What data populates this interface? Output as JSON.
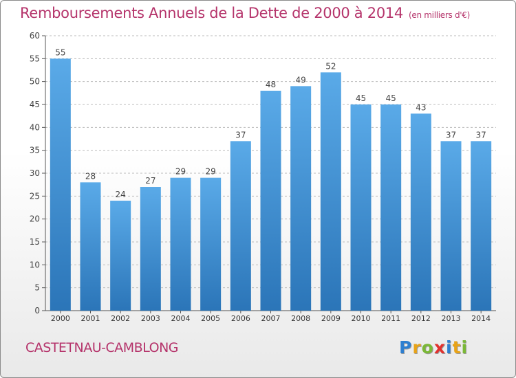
{
  "header": {
    "title": "Remboursements Annuels de la Dette de 2000 à 2014",
    "units": "(en milliers d'€)"
  },
  "footer": {
    "commune": "CASTETNAU-CAMBLONG",
    "logo": {
      "letters": [
        "P",
        "r",
        "o",
        "x",
        "i",
        "t",
        "i"
      ],
      "colors": [
        "#2e7fd0",
        "#e8a318",
        "#7ab836",
        "#e2312e",
        "#2e7fd0",
        "#e8a318",
        "#7ab836"
      ]
    }
  },
  "colors": {
    "bar_light": "#5aaae8",
    "bar_dark": "#2b75b8",
    "accent": "#b5346b",
    "grid": "#bbbbbb"
  },
  "chart_data": {
    "type": "bar",
    "categories": [
      "2000",
      "2001",
      "2002",
      "2003",
      "2004",
      "2005",
      "2006",
      "2007",
      "2008",
      "2009",
      "2010",
      "2011",
      "2012",
      "2013",
      "2014"
    ],
    "values": [
      55,
      28,
      24,
      27,
      29,
      29,
      37,
      48,
      49,
      52,
      45,
      45,
      43,
      37,
      37
    ],
    "ylim": [
      0,
      60
    ],
    "yticks": [
      0,
      5,
      10,
      15,
      20,
      25,
      30,
      35,
      40,
      45,
      50,
      55,
      60
    ],
    "grid": "horizontal dashed",
    "data_labels": true
  }
}
